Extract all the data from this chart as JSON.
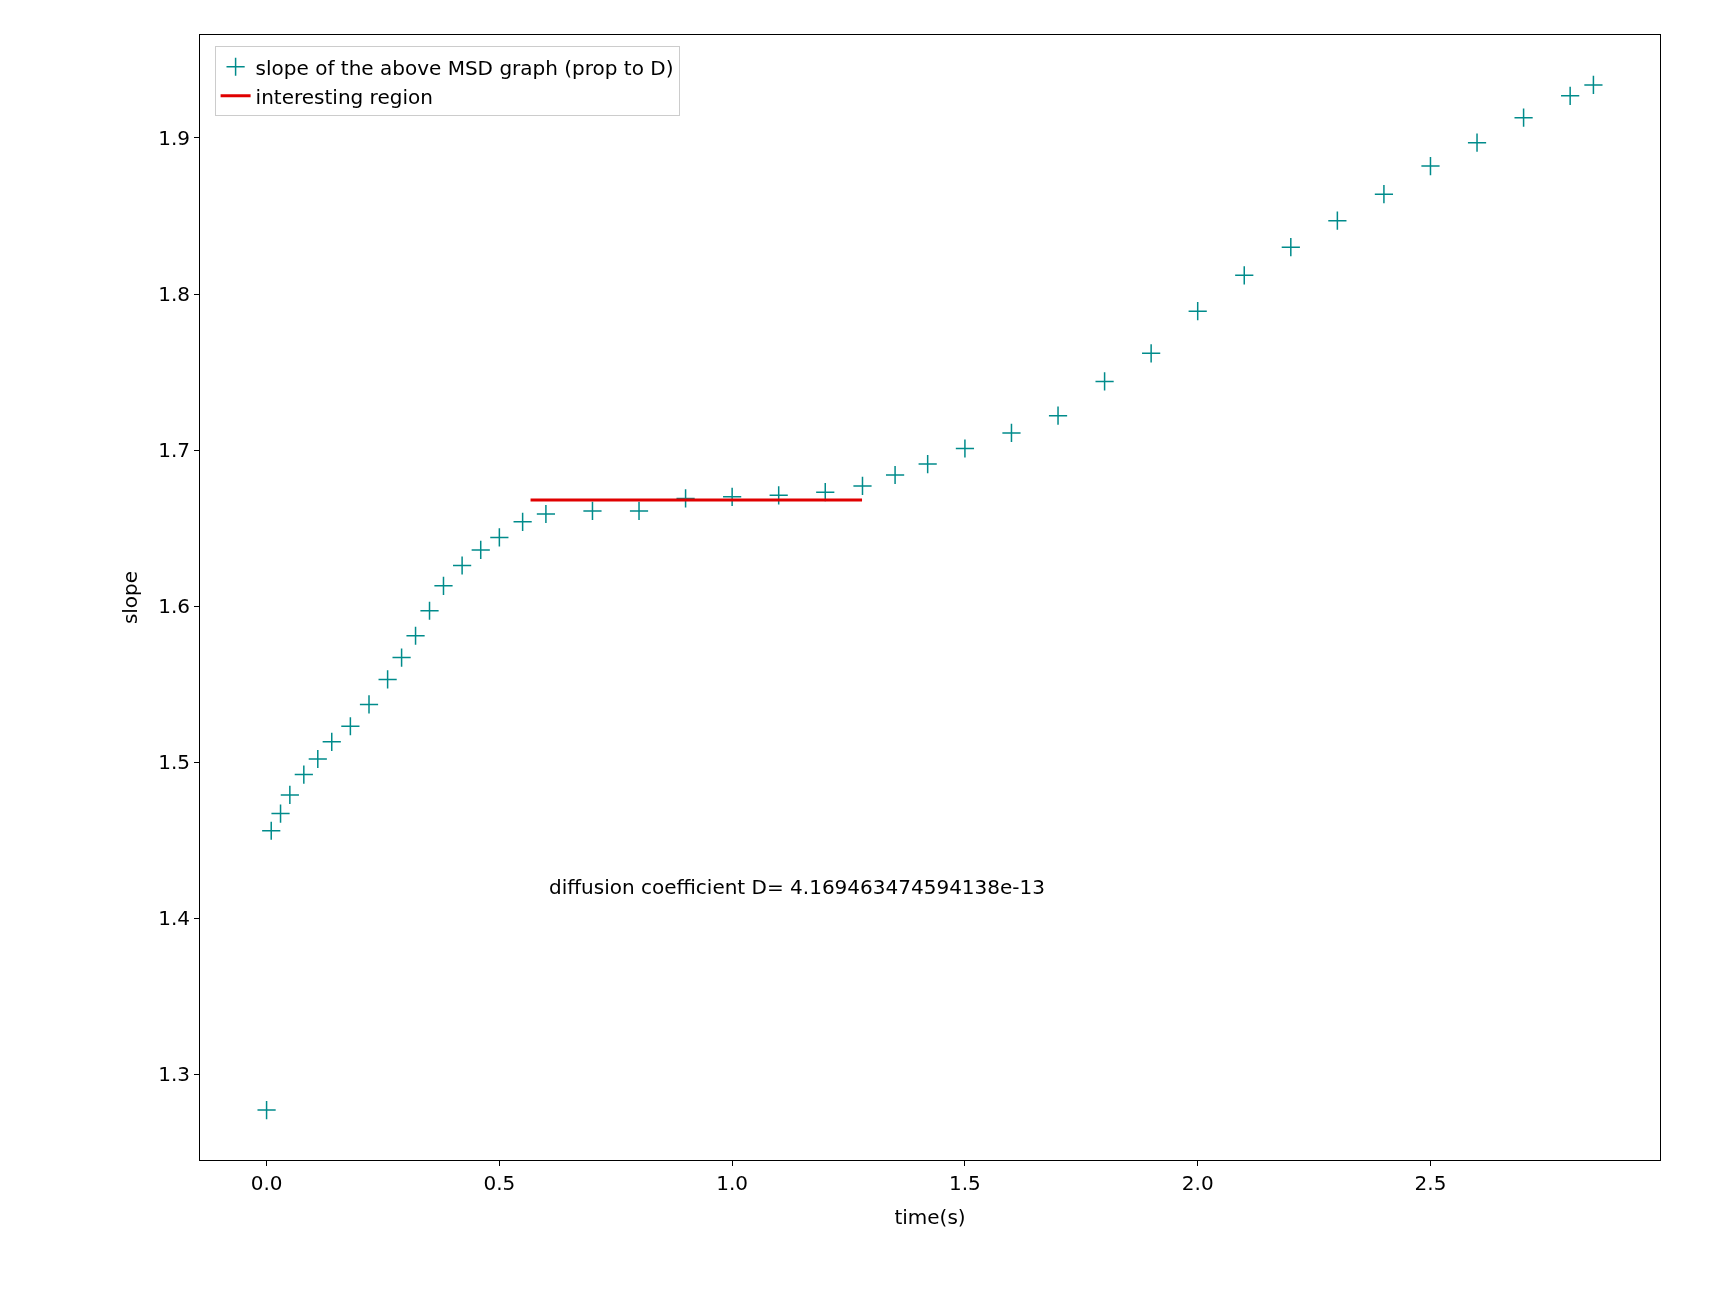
{
  "chart_data": {
    "type": "scatter",
    "xlabel": "time(s)",
    "ylabel": "slope",
    "xlim": [
      -0.143,
      2.993
    ],
    "ylim": [
      1.245,
      1.966
    ],
    "xticks": [
      {
        "value": 0.0,
        "label": "0.0"
      },
      {
        "value": 0.5,
        "label": "0.5"
      },
      {
        "value": 1.0,
        "label": "1.0"
      },
      {
        "value": 1.5,
        "label": "1.5"
      },
      {
        "value": 2.0,
        "label": "2.0"
      },
      {
        "value": 2.5,
        "label": "2.5"
      }
    ],
    "yticks": [
      1.3,
      1.4,
      1.5,
      1.6,
      1.7,
      1.8,
      1.9
    ],
    "grid": false,
    "legend": "top left",
    "annotations": [
      "diffusion coefficient D= 4.169463474594138e-13"
    ],
    "series": [
      {
        "name": "slope of the above MSD graph (prop to D)",
        "marker": "cross",
        "color": "#008b8b",
        "x": [
          0,
          0.01,
          0.03,
          0.05,
          0.08,
          0.11,
          0.14,
          0.18,
          0.22,
          0.26,
          0.29,
          0.32,
          0.35,
          0.38,
          0.42,
          0.46,
          0.5,
          0.55,
          0.6,
          0.7,
          0.8,
          0.9,
          1.0,
          1.1,
          1.2,
          1.28,
          1.35,
          1.42,
          1.5,
          1.6,
          1.7,
          1.8,
          1.9,
          2.0,
          2.1,
          2.2,
          2.3,
          2.4,
          2.5,
          2.6,
          2.7,
          2.8,
          2.85
        ],
        "values": [
          1.277,
          1.456,
          1.467,
          1.479,
          1.492,
          1.502,
          1.513,
          1.523,
          1.537,
          1.553,
          1.567,
          1.581,
          1.597,
          1.613,
          1.626,
          1.636,
          1.644,
          1.654,
          1.659,
          1.661,
          1.661,
          1.669,
          1.67,
          1.671,
          1.673,
          1.677,
          1.684,
          1.691,
          1.701,
          1.711,
          1.722,
          1.744,
          1.762,
          1.789,
          1.812,
          1.83,
          1.847,
          1.864,
          1.882,
          1.897,
          1.913,
          1.927,
          1.934
        ]
      },
      {
        "name": "interesting region",
        "type": "line",
        "color": "#e00000",
        "x": [
          0.567,
          1.279
        ],
        "values": [
          1.668,
          1.668
        ]
      }
    ]
  }
}
